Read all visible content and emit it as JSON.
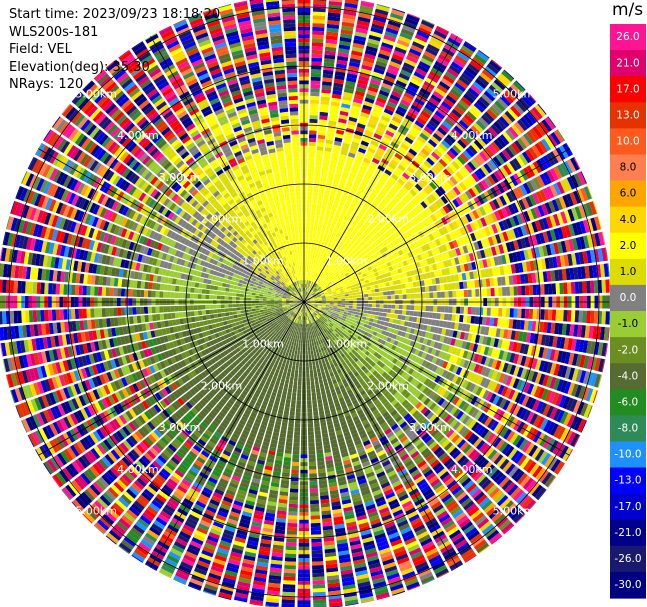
{
  "info": {
    "start_time": "Start time: 2023/09/23 18:18:20",
    "instrument": "WLS200s-181",
    "field": "Field: VEL",
    "elevation": "Elevation(deg): 35.30",
    "nrays": "NRays: 120"
  },
  "colorbar": {
    "unit": "m/s",
    "ticks": [
      "26.0",
      "21.0",
      "17.0",
      "13.0",
      "10.0",
      "8.0",
      "6.0",
      "4.0",
      "2.0",
      "1.0",
      "0.0",
      "-1.0",
      "-2.0",
      "-4.0",
      "-6.0",
      "-8.0",
      "-10.0",
      "-13.0",
      "-17.0",
      "-21.0",
      "-26.0",
      "-30.0"
    ],
    "colors": [
      "#ff1493",
      "#e0006b",
      "#ff0000",
      "#e43200",
      "#ff5a1e",
      "#ff7f50",
      "#ffa500",
      "#ffd700",
      "#ffff00",
      "#dcdc00",
      "#808080",
      "#9acd32",
      "#6b8e23",
      "#556b2f",
      "#228b22",
      "#2e8b57",
      "#1e90ff",
      "#0000ff",
      "#0000cd",
      "#00008b",
      "#191970",
      "#000080"
    ]
  },
  "chart_data": {
    "type": "heatmap",
    "subtype": "ppi-polar",
    "field": "VEL",
    "units": "m/s",
    "nrays": 120,
    "elevation_deg": 35.3,
    "range_rings_km": [
      1.0,
      2.0,
      3.0,
      4.0,
      5.0
    ],
    "range_ring_labels": [
      "1.00km",
      "2.00km",
      "3.00km",
      "4.00km",
      "5.00km"
    ],
    "max_range_km": 5.2,
    "radial_lines": true,
    "color_scale": {
      "boundaries": [
        -30,
        -26,
        -21,
        -17,
        -13,
        -10,
        -8,
        -6,
        -4,
        -2,
        -1,
        0,
        1,
        2,
        4,
        6,
        8,
        10,
        13,
        17,
        21,
        26,
        30
      ],
      "colors": [
        "#000080",
        "#191970",
        "#00008b",
        "#0000cd",
        "#0000ff",
        "#1e90ff",
        "#2e8b57",
        "#228b22",
        "#556b2f",
        "#6b8e23",
        "#9acd32",
        "#808080",
        "#dcdc00",
        "#ffff00",
        "#ffd700",
        "#ffa500",
        "#ff7f50",
        "#ff5a1e",
        "#e43200",
        "#ff0000",
        "#e0006b",
        "#ff1493"
      ]
    },
    "pattern_zones": [
      {
        "range_km": [
          0.0,
          2.6
        ],
        "north_half": "yellow (positive ~2-4 m/s)",
        "south_half": "yellow-green / olive (negative ~-1 to -4 m/s)"
      },
      {
        "range_km": [
          0.8,
          1.5
        ],
        "note": "gray near-zero band along the zero isodop"
      },
      {
        "range_km": [
          2.6,
          3.6
        ],
        "note": "transition ring: yellow/orange north-east, green south-west, mixed noise"
      },
      {
        "range_km": [
          3.6,
          5.2
        ],
        "note": "noise: random colors from full scale"
      }
    ]
  }
}
